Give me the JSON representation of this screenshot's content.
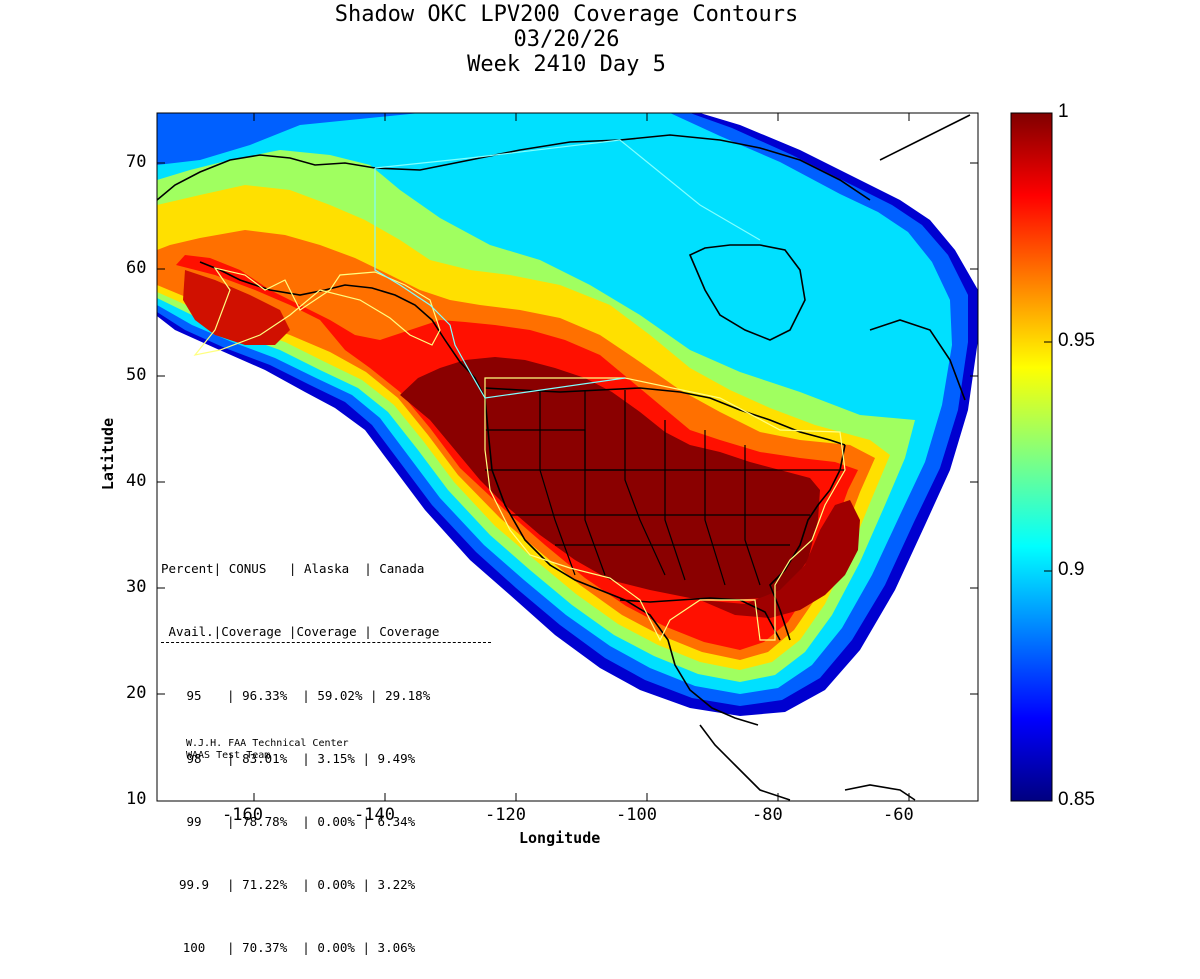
{
  "title": {
    "line1": "Shadow OKC LPV200 Coverage Contours",
    "line2": "03/20/26",
    "line3": "Week 2410 Day 5"
  },
  "axes": {
    "xlabel": "Longitude",
    "ylabel": "Latitude",
    "xticks": [
      "-160",
      "-140",
      "-120",
      "-100",
      "-80",
      "-60"
    ],
    "yticks": [
      "70",
      "60",
      "50",
      "40",
      "30",
      "20",
      "10"
    ],
    "xlim": [
      -175,
      -50
    ],
    "ylim": [
      10,
      75
    ]
  },
  "colorbar": {
    "ticks": [
      "1",
      "0.95",
      "0.9",
      "0.85"
    ],
    "range": [
      0.85,
      1
    ],
    "colormap": "jet"
  },
  "table": {
    "header1": "Percent| CONUS   | Alaska  | Canada",
    "header2": " Avail.|Coverage |Coverage | Coverage",
    "rows": [
      {
        "avail": "95",
        "conus": "96.33%",
        "alaska": "59.02%",
        "canada": "29.18%"
      },
      {
        "avail": "98",
        "conus": "83.01%",
        "alaska": "3.15%",
        "canada": "9.49%"
      },
      {
        "avail": "99",
        "conus": "78.78%",
        "alaska": "0.00%",
        "canada": "6.34%"
      },
      {
        "avail": "99.9",
        "conus": "71.22%",
        "alaska": "0.00%",
        "canada": "3.22%"
      },
      {
        "avail": "100",
        "conus": "70.37%",
        "alaska": "0.00%",
        "canada": "3.06%"
      }
    ]
  },
  "credit": {
    "line1": "W.J.H. FAA Technical Center",
    "line2": "WAAS Test Team"
  },
  "colors": {
    "dark_red": "#800000",
    "red": "#ff0000",
    "orange": "#ff8000",
    "yellow": "#ffff00",
    "cyan": "#00ffff",
    "blue": "#0000ff",
    "dark_blue": "#000080",
    "boundary_yellow": "#ffff80",
    "boundary_cyan": "#80ffff"
  }
}
